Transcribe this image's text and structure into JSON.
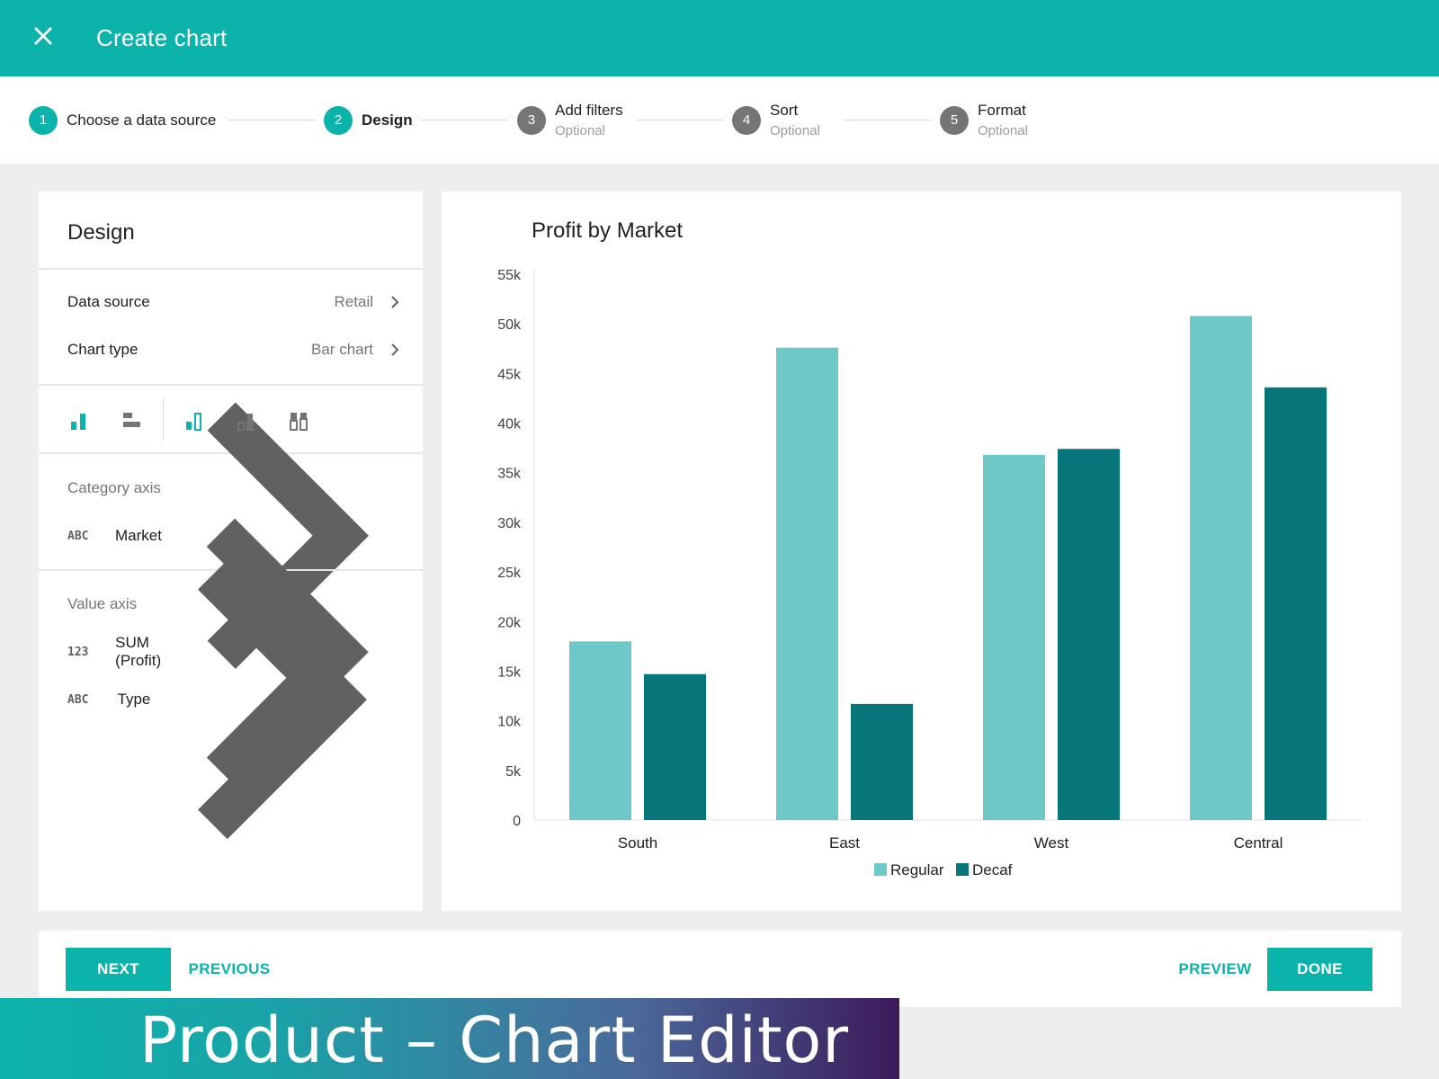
{
  "app": {
    "title": "Create chart"
  },
  "steps": [
    {
      "num": "1",
      "label": "Choose a data source",
      "sub": "",
      "state": "active"
    },
    {
      "num": "2",
      "label": "Design",
      "sub": "",
      "state": "current"
    },
    {
      "num": "3",
      "label": "Add filters",
      "sub": "Optional",
      "state": "inactive"
    },
    {
      "num": "4",
      "label": "Sort",
      "sub": "Optional",
      "state": "inactive"
    },
    {
      "num": "5",
      "label": "Format",
      "sub": "Optional",
      "state": "inactive"
    }
  ],
  "design": {
    "title": "Design",
    "data_source_label": "Data source",
    "data_source_value": "Retail",
    "chart_type_label": "Chart type",
    "chart_type_value": "Bar chart",
    "category_axis_title": "Category axis",
    "category_fields": [
      {
        "type": "ABC",
        "name": "Market"
      }
    ],
    "value_axis_title": "Value axis",
    "value_fields": [
      {
        "type": "123",
        "name": "SUM (Profit)"
      },
      {
        "type": "ABC",
        "name": "Type"
      }
    ],
    "toolbar_icons": [
      "column-chart-icon",
      "bar-chart-icon",
      "grouped-column-icon",
      "stacked-column-icon",
      "percent-stacked-column-icon"
    ]
  },
  "chart_data": {
    "type": "bar",
    "title": "Profit by Market",
    "categories": [
      "South",
      "East",
      "West",
      "Central"
    ],
    "series": [
      {
        "name": "Regular",
        "values": [
          18000,
          47600,
          36800,
          50800
        ],
        "color": "#6fc8c8"
      },
      {
        "name": "Decaf",
        "values": [
          14700,
          11700,
          37400,
          43600
        ],
        "color": "#06767a"
      }
    ],
    "ylim": [
      0,
      55000
    ],
    "yticks": [
      0,
      5000,
      10000,
      15000,
      20000,
      25000,
      30000,
      35000,
      40000,
      45000,
      50000,
      55000
    ],
    "ytick_labels": [
      "0",
      "5k",
      "10k",
      "15k",
      "20k",
      "25k",
      "30k",
      "35k",
      "40k",
      "45k",
      "50k",
      "55k"
    ],
    "legend_position": "bottom",
    "grid": false
  },
  "footer": {
    "next_label": "NEXT",
    "previous_label": "PREVIOUS",
    "preview_label": "PREVIEW",
    "done_label": "DONE"
  },
  "banner": {
    "text": "Product – Chart Editor"
  },
  "colors": {
    "accent": "#0bb3aa",
    "regular": "#6fc8c8",
    "decaf": "#06767a"
  }
}
